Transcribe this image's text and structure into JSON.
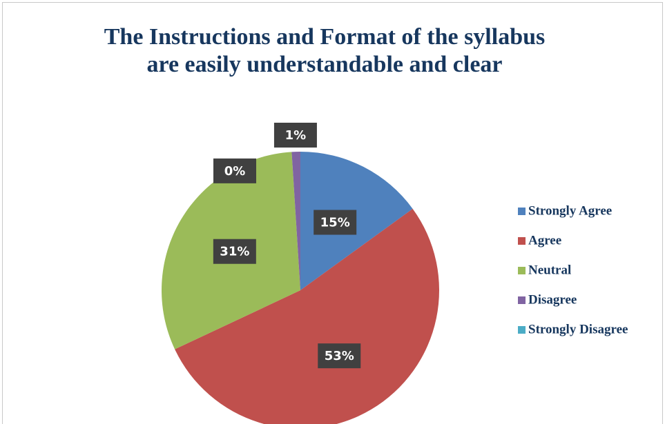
{
  "chart_data": {
    "type": "pie",
    "title": [
      "The Instructions and Format of  the syllabus",
      "are  easily understandable and clear"
    ],
    "categories": [
      "Strongly Agree",
      "Agree",
      "Neutral",
      "Disagree",
      "Strongly Disagree"
    ],
    "values": [
      15,
      53,
      31,
      1,
      0
    ],
    "value_labels": [
      "15%",
      "53%",
      "31%",
      "1%",
      "0%"
    ],
    "colors": [
      "#4f81bd",
      "#c0504d",
      "#9bbb59",
      "#8064a2",
      "#4bacc6"
    ],
    "legend": "right"
  }
}
